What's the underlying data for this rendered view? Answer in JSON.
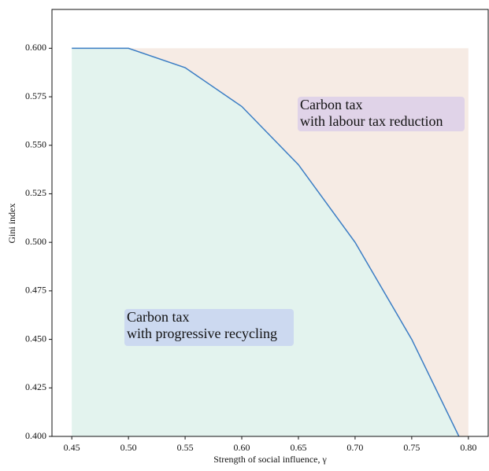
{
  "chart_data": {
    "type": "line",
    "x_label": "Strength of social influence, γ",
    "y_label": "Gini index",
    "x": [
      0.45,
      0.5,
      0.55,
      0.6,
      0.65,
      0.7,
      0.75,
      0.8
    ],
    "series": [
      {
        "color": "#3b7dc4",
        "values": [
          0.6,
          0.6,
          0.59,
          0.57,
          0.54,
          0.5,
          0.45,
          0.39
        ]
      }
    ],
    "region_top": 0.6,
    "regions": [
      {
        "color": "#e3f3ee"
      },
      {
        "color": "#f6ebe4"
      }
    ],
    "annotations": [
      {
        "lines": [
          "Carbon tax",
          "with labour tax reduction"
        ],
        "color": "#e0d3e8"
      },
      {
        "lines": [
          "Carbon tax",
          "with progressive recycling"
        ],
        "color": "#ccd9f0"
      }
    ],
    "xlim": [
      0.4325,
      0.8175
    ],
    "ylim": [
      0.4,
      0.62
    ],
    "xticks": [
      0.45,
      {
        "value": 0.5,
        "label": "0.50"
      },
      0.55,
      {
        "value": 0.6,
        "label": "0.60"
      },
      0.65,
      {
        "value": 0.7,
        "label": "0.70"
      },
      0.75,
      {
        "value": 0.8,
        "label": "0.80"
      }
    ],
    "yticks": [
      {
        "value": 0.4,
        "label": "0.400"
      },
      {
        "value": 0.425,
        "label": "0.425"
      },
      {
        "value": 0.45,
        "label": "0.450"
      },
      {
        "value": 0.475,
        "label": "0.475"
      },
      {
        "value": 0.5,
        "label": "0.500"
      },
      {
        "value": 0.525,
        "label": "0.525"
      },
      {
        "value": 0.55,
        "label": "0.550"
      },
      {
        "value": 0.575,
        "label": "0.575"
      },
      {
        "value": 0.6,
        "label": "0.600"
      }
    ]
  }
}
